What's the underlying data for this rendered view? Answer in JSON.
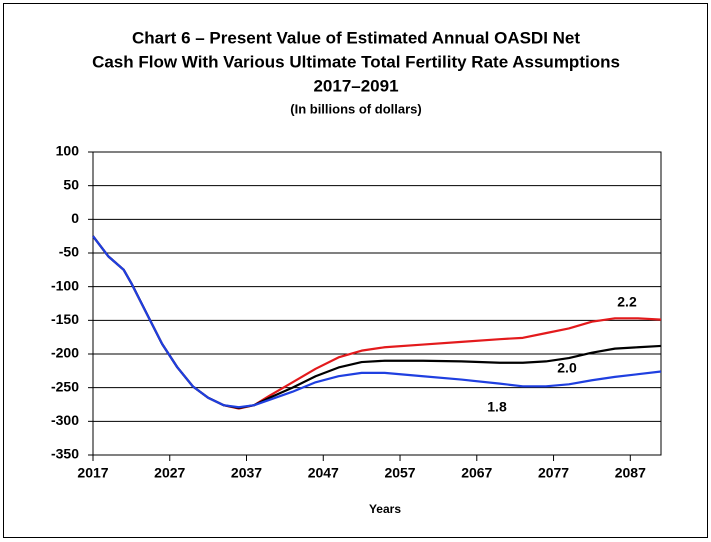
{
  "chart_data": {
    "type": "line",
    "title": [
      "Chart 6 – Present Value of Estimated Annual OASDI Net",
      "Cash Flow With Various Ultimate Total Fertility Rate Assumptions",
      "2017–2091"
    ],
    "subtitle": "(In billions of dollars)",
    "xlabel": "Years",
    "x": [
      2017,
      2019,
      2021,
      2022,
      2024,
      2026,
      2028,
      2030,
      2032,
      2034,
      2036,
      2038,
      2040,
      2043,
      2046,
      2049,
      2052,
      2055,
      2060,
      2065,
      2070,
      2073,
      2076,
      2079,
      2082,
      2085,
      2088,
      2091
    ],
    "series": [
      {
        "color": "#e31a1c",
        "values": [
          -25,
          -55,
          -75,
          -95,
          -140,
          -185,
          -220,
          -248,
          -265,
          -276,
          -281,
          -276,
          -262,
          -242,
          -222,
          -205,
          -195,
          -190,
          -186,
          -182,
          -178,
          -176,
          -169,
          -162,
          -152,
          -147,
          -147,
          -149
        ]
      },
      {
        "color": "#000000",
        "values": [
          -25,
          -55,
          -75,
          -95,
          -140,
          -185,
          -220,
          -248,
          -265,
          -276,
          -280,
          -276,
          -265,
          -250,
          -233,
          -220,
          -212,
          -210,
          -210,
          -211,
          -213,
          -213,
          -211,
          -206,
          -198,
          -192,
          -190,
          -188
        ]
      },
      {
        "color": "#1f3fe0",
        "values": [
          -25,
          -55,
          -75,
          -95,
          -140,
          -185,
          -220,
          -248,
          -265,
          -276,
          -279,
          -276,
          -268,
          -256,
          -242,
          -233,
          -228,
          -228,
          -233,
          -238,
          -244,
          -248,
          -248,
          -245,
          -239,
          -234,
          -230,
          -226
        ]
      }
    ],
    "annotations": [
      "2.2",
      "2.0",
      "1.8"
    ],
    "xlim": [
      2017,
      2091
    ],
    "xticks": [
      2017,
      2027,
      2037,
      2047,
      2057,
      2067,
      2077,
      2087
    ],
    "ylim": [
      -350,
      100
    ],
    "yticks": [
      -350,
      -300,
      -250,
      -200,
      -150,
      -100,
      -50,
      0,
      50,
      100
    ],
    "grid": true
  }
}
